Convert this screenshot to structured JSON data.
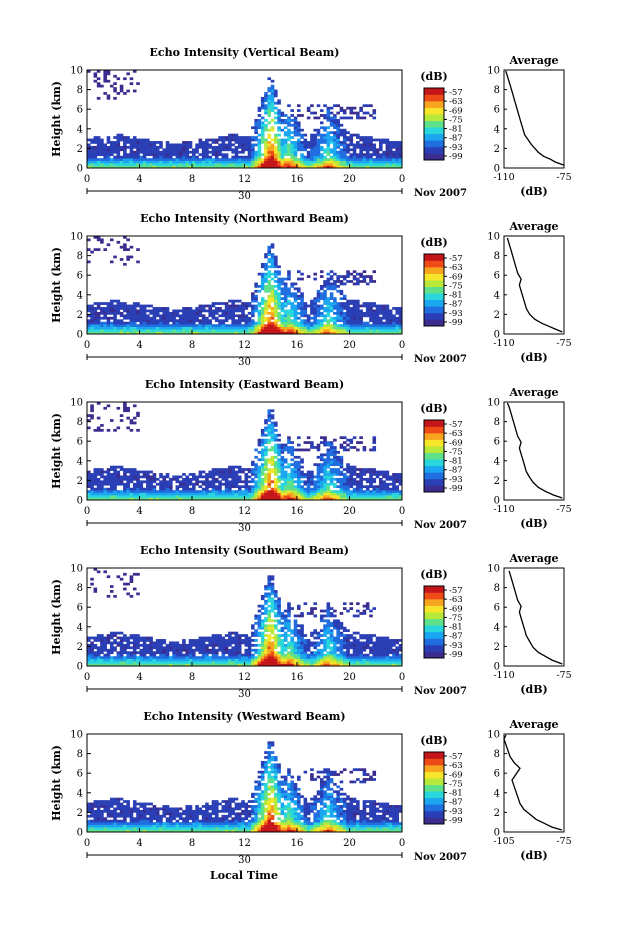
{
  "figure": {
    "xlabel": "Local Time",
    "date_label": "Nov 2007",
    "day_label": "30",
    "ylabel": "Height (km)",
    "colorbar_unit": "(dB)",
    "colorbar_ticks": [
      "-57",
      "-63",
      "-69",
      "-75",
      "-81",
      "-87",
      "-93",
      "-99"
    ],
    "colorbar_colors": [
      "#3a2d8f",
      "#2a3fb5",
      "#1f6fe0",
      "#1aa6f0",
      "#29d6dc",
      "#5fe08a",
      "#b8e83a",
      "#f7e52a",
      "#f7a51f",
      "#ee4b17",
      "#c4151a"
    ],
    "avg_title": "Average",
    "avg_xlabel": "(dB)"
  },
  "chart_data": [
    {
      "type": "heatmap",
      "title": "Echo Intensity (Vertical Beam)",
      "xlabel": "Local Time",
      "ylabel": "Height (km)",
      "x_ticks": [
        "0",
        "4",
        "8",
        "12",
        "16",
        "20",
        "0"
      ],
      "y_ticks": [
        "0",
        "2",
        "4",
        "6",
        "8",
        "10"
      ],
      "xlim": [
        0,
        24
      ],
      "ylim": [
        0,
        10
      ],
      "colorbar": {
        "label": "(dB)",
        "range": [
          -99,
          -57
        ]
      },
      "average": {
        "title": "Average",
        "xlabel": "(dB)",
        "x_ticks": [
          "-110",
          "-75"
        ],
        "xlim": [
          -110,
          -75
        ],
        "profile": [
          [
            -75,
            0.3
          ],
          [
            -80,
            0.6
          ],
          [
            -83,
            0.9
          ],
          [
            -87,
            1.2
          ],
          [
            -90,
            1.6
          ],
          [
            -92,
            2.0
          ],
          [
            -94,
            2.4
          ],
          [
            -96,
            2.9
          ],
          [
            -98,
            3.4
          ],
          [
            -99,
            4.0
          ],
          [
            -100,
            4.6
          ],
          [
            -101,
            5.2
          ],
          [
            -102,
            5.8
          ],
          [
            -103,
            6.4
          ],
          [
            -104,
            7.0
          ],
          [
            -105,
            7.6
          ],
          [
            -106,
            8.2
          ],
          [
            -107,
            8.8
          ],
          [
            -108,
            9.4
          ],
          [
            -109,
            9.9
          ]
        ]
      }
    },
    {
      "type": "heatmap",
      "title": "Echo Intensity (Northward Beam)",
      "xlabel": "Local Time",
      "ylabel": "Height (km)",
      "x_ticks": [
        "0",
        "4",
        "8",
        "12",
        "16",
        "20",
        "0"
      ],
      "y_ticks": [
        "0",
        "2",
        "4",
        "6",
        "8",
        "10"
      ],
      "xlim": [
        0,
        24
      ],
      "ylim": [
        0,
        10
      ],
      "colorbar": {
        "label": "(dB)",
        "range": [
          -99,
          -57
        ]
      },
      "average": {
        "title": "Average",
        "xlabel": "(dB)",
        "x_ticks": [
          "-110",
          "-75"
        ],
        "xlim": [
          -110,
          -75
        ],
        "profile": [
          [
            -76,
            0.2
          ],
          [
            -80,
            0.5
          ],
          [
            -84,
            0.8
          ],
          [
            -88,
            1.1
          ],
          [
            -92,
            1.5
          ],
          [
            -95,
            2.0
          ],
          [
            -97,
            2.6
          ],
          [
            -98,
            3.2
          ],
          [
            -99,
            3.8
          ],
          [
            -100,
            4.4
          ],
          [
            -101,
            5.0
          ],
          [
            -100,
            5.6
          ],
          [
            -102,
            6.2
          ],
          [
            -103,
            6.8
          ],
          [
            -104,
            7.4
          ],
          [
            -105,
            8.0
          ],
          [
            -106,
            8.6
          ],
          [
            -107,
            9.2
          ],
          [
            -108,
            9.8
          ]
        ]
      }
    },
    {
      "type": "heatmap",
      "title": "Echo Intensity (Eastward Beam)",
      "xlabel": "Local Time",
      "ylabel": "Height (km)",
      "x_ticks": [
        "0",
        "4",
        "8",
        "12",
        "16",
        "20",
        "0"
      ],
      "y_ticks": [
        "0",
        "2",
        "4",
        "6",
        "8",
        "10"
      ],
      "xlim": [
        0,
        24
      ],
      "ylim": [
        0,
        10
      ],
      "colorbar": {
        "label": "(dB)",
        "range": [
          -99,
          -57
        ]
      },
      "average": {
        "title": "Average",
        "xlabel": "(dB)",
        "x_ticks": [
          "-110",
          "-75"
        ],
        "xlim": [
          -110,
          -75
        ],
        "profile": [
          [
            -76,
            0.2
          ],
          [
            -81,
            0.5
          ],
          [
            -86,
            0.9
          ],
          [
            -90,
            1.3
          ],
          [
            -93,
            1.8
          ],
          [
            -95,
            2.3
          ],
          [
            -97,
            2.9
          ],
          [
            -98,
            3.5
          ],
          [
            -99,
            4.1
          ],
          [
            -100,
            4.7
          ],
          [
            -101,
            5.3
          ],
          [
            -100,
            5.9
          ],
          [
            -102,
            6.5
          ],
          [
            -103,
            7.1
          ],
          [
            -104,
            7.7
          ],
          [
            -105,
            8.3
          ],
          [
            -106,
            8.9
          ],
          [
            -107,
            9.5
          ],
          [
            -108,
            9.9
          ]
        ]
      }
    },
    {
      "type": "heatmap",
      "title": "Echo Intensity (Southward Beam)",
      "xlabel": "Local Time",
      "ylabel": "Height (km)",
      "x_ticks": [
        "0",
        "4",
        "8",
        "12",
        "16",
        "20",
        "0"
      ],
      "y_ticks": [
        "0",
        "2",
        "4",
        "6",
        "8",
        "10"
      ],
      "xlim": [
        0,
        24
      ],
      "ylim": [
        0,
        10
      ],
      "colorbar": {
        "label": "(dB)",
        "range": [
          -99,
          -57
        ]
      },
      "average": {
        "title": "Average",
        "xlabel": "(dB)",
        "x_ticks": [
          "-110",
          "-75"
        ],
        "xlim": [
          -110,
          -75
        ],
        "profile": [
          [
            -76,
            0.2
          ],
          [
            -82,
            0.6
          ],
          [
            -86,
            1.0
          ],
          [
            -90,
            1.4
          ],
          [
            -93,
            1.9
          ],
          [
            -95,
            2.5
          ],
          [
            -97,
            3.1
          ],
          [
            -98,
            3.7
          ],
          [
            -99,
            4.3
          ],
          [
            -100,
            4.9
          ],
          [
            -101,
            5.5
          ],
          [
            -100,
            6.1
          ],
          [
            -102,
            6.7
          ],
          [
            -103,
            7.3
          ],
          [
            -104,
            7.9
          ],
          [
            -105,
            8.5
          ],
          [
            -106,
            9.1
          ],
          [
            -107,
            9.7
          ]
        ]
      }
    },
    {
      "type": "heatmap",
      "title": "Echo Intensity (Westward Beam)",
      "xlabel": "Local Time",
      "ylabel": "Height (km)",
      "x_ticks": [
        "0",
        "4",
        "8",
        "12",
        "16",
        "20",
        "0"
      ],
      "y_ticks": [
        "0",
        "2",
        "4",
        "6",
        "8",
        "10"
      ],
      "xlim": [
        0,
        24
      ],
      "ylim": [
        0,
        10
      ],
      "colorbar": {
        "label": "(dB)",
        "range": [
          -99,
          -57
        ]
      },
      "average": {
        "title": "Average",
        "xlabel": "(dB)",
        "x_ticks": [
          "-105",
          "-75"
        ],
        "xlim": [
          -105,
          -75
        ],
        "profile": [
          [
            -76,
            0.2
          ],
          [
            -81,
            0.5
          ],
          [
            -85,
            0.9
          ],
          [
            -89,
            1.3
          ],
          [
            -92,
            1.8
          ],
          [
            -95,
            2.3
          ],
          [
            -97,
            2.9
          ],
          [
            -98,
            3.5
          ],
          [
            -99,
            4.1
          ],
          [
            -100,
            4.7
          ],
          [
            -101,
            5.3
          ],
          [
            -99,
            5.9
          ],
          [
            -97,
            6.5
          ],
          [
            -100,
            7.1
          ],
          [
            -102,
            7.7
          ],
          [
            -103,
            8.3
          ],
          [
            -104,
            8.9
          ],
          [
            -105,
            9.5
          ],
          [
            -104,
            9.9
          ]
        ]
      }
    }
  ]
}
